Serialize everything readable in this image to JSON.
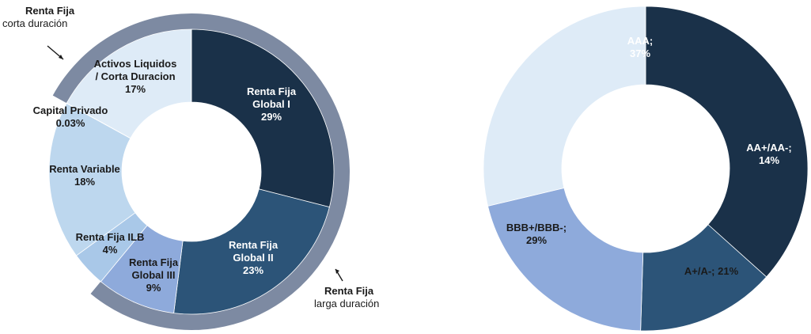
{
  "chart_data": [
    {
      "type": "donut",
      "title": "",
      "slices": [
        {
          "label_lines": [
            "Renta Fija",
            "Global I",
            "29%"
          ],
          "value": 29,
          "color": "#1a3149",
          "text_color": "#ffffff"
        },
        {
          "label_lines": [
            "Renta Fija",
            "Global II",
            "23%"
          ],
          "value": 23,
          "color": "#2c5478",
          "text_color": "#ffffff"
        },
        {
          "label_lines": [
            "Renta Fija",
            "Global III",
            "9%"
          ],
          "value": 9,
          "color": "#8eaadb",
          "text_color": "#1a1a1a"
        },
        {
          "label_lines": [
            "Renta Fija ILB",
            "4%"
          ],
          "value": 4,
          "color": "#a9c8e8",
          "text_color": "#1a1a1a"
        },
        {
          "label_lines": [
            "Renta Variable",
            "18%"
          ],
          "value": 18,
          "color": "#bdd7ee",
          "text_color": "#1a1a1a"
        },
        {
          "label_lines": [
            "Capital Privado",
            "0.03%"
          ],
          "value": 0.03,
          "color": "#bdd7ee",
          "text_color": "#1a1a1a"
        },
        {
          "label_lines": [
            "Activos Liquidos",
            "/ Corta Duracion",
            "17%"
          ],
          "value": 17,
          "color": "#deebf7",
          "text_color": "#1a1a1a"
        }
      ],
      "outer_bands": [
        {
          "name": "Renta Fija larga duración",
          "covers_pct": [
            0,
            61
          ]
        },
        {
          "name": "Renta Fija corta duración",
          "covers_pct": [
            83,
            100
          ]
        }
      ],
      "annotations": [
        {
          "bold": "Renta Fija",
          "normal": "corta duración"
        },
        {
          "bold": "Renta Fija",
          "normal": "larga duración"
        }
      ],
      "band_color": "#7d8aa2"
    },
    {
      "type": "donut",
      "title": "",
      "slices": [
        {
          "label_lines": [
            "AAA;",
            "37%"
          ],
          "value": 37,
          "color": "#1a3149",
          "text_color": "#ffffff"
        },
        {
          "label_lines": [
            "AA+/AA-;",
            "14%"
          ],
          "value": 14,
          "color": "#2c5478",
          "text_color": "#ffffff"
        },
        {
          "label_lines": [
            "A+/A-; 21%"
          ],
          "value": 21,
          "color": "#8eaadb",
          "text_color": "#1a1a1a"
        },
        {
          "label_lines": [
            "BBB+/BBB-;",
            "29%"
          ],
          "value": 29,
          "color": "#deebf7",
          "text_color": "#1a1a1a"
        }
      ]
    }
  ]
}
